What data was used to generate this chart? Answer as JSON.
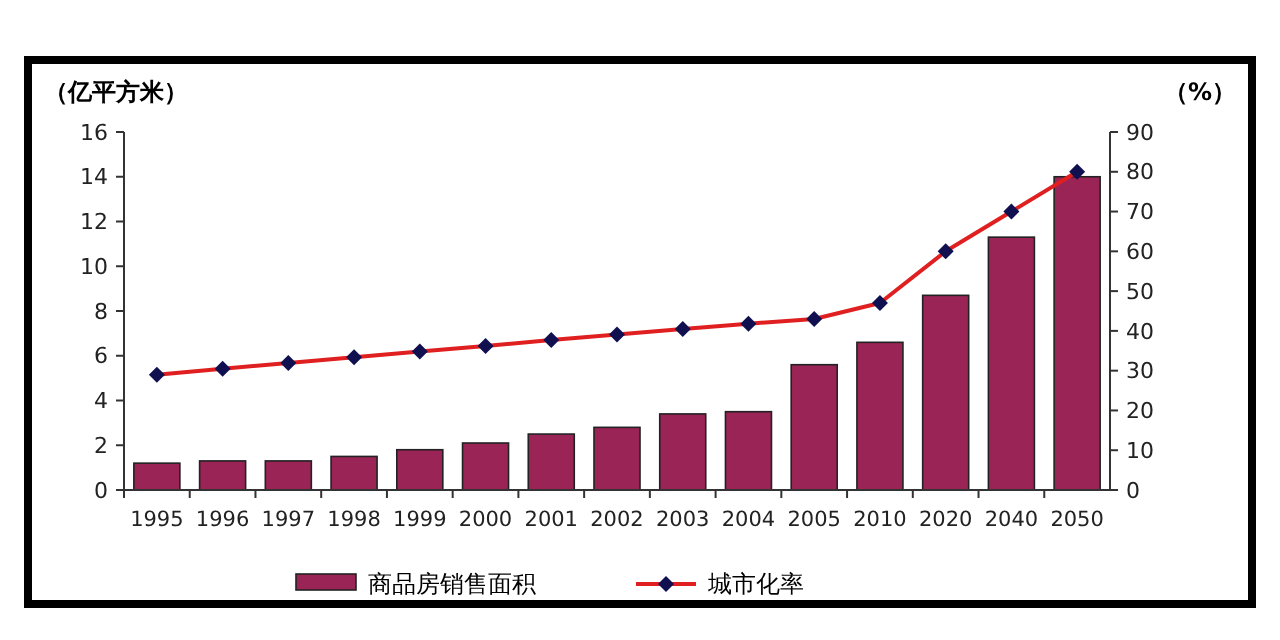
{
  "chart_data": {
    "type": "bar",
    "ylabel": "（亿平方米）",
    "y2label": "（%）",
    "categories": [
      "1995",
      "1996",
      "1997",
      "1998",
      "1999",
      "2000",
      "2001",
      "2002",
      "2003",
      "2004",
      "2005",
      "2010",
      "2020",
      "2040",
      "2050"
    ],
    "series": [
      {
        "name": "商品房销售面积",
        "color": "#9b2457",
        "values": [
          1.2,
          1.3,
          1.3,
          1.5,
          1.8,
          2.1,
          2.5,
          2.8,
          3.4,
          3.5,
          5.6,
          6.6,
          8.7,
          11.3,
          14.0
        ]
      },
      {
        "name": "城市化率",
        "type": "line",
        "axis": "y2",
        "color": "#e02020",
        "marker": "diamond",
        "values": [
          29,
          30.5,
          31.9,
          33.4,
          34.8,
          36.2,
          37.7,
          39.1,
          40.5,
          41.8,
          43,
          47,
          60,
          70,
          80
        ]
      }
    ],
    "ylim": [
      0,
      16
    ],
    "yticks": [
      0,
      2,
      4,
      6,
      8,
      10,
      12,
      14,
      16
    ],
    "y2lim": [
      0,
      90
    ],
    "y2ticks": [
      0,
      10,
      20,
      30,
      40,
      50,
      60,
      70,
      80,
      90
    ],
    "grid": false,
    "legend": "bottom"
  }
}
